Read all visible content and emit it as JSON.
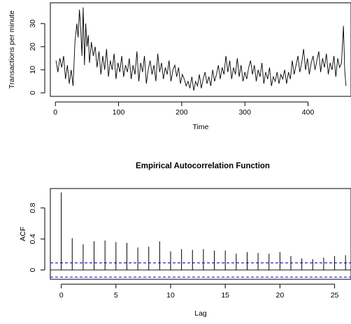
{
  "chart_data": [
    {
      "type": "line",
      "title": "",
      "xlabel": "Time",
      "ylabel": "Transactions per minute",
      "xlim": [
        -8,
        468
      ],
      "ylim": [
        -1.5,
        39
      ],
      "xticks": [
        0,
        100,
        200,
        300,
        400
      ],
      "yticks": [
        0,
        10,
        20,
        30
      ],
      "grid": false,
      "legend": "none",
      "line_color": "#000000",
      "series": [
        {
          "x": [
            1,
            4,
            7,
            10,
            13,
            16,
            19,
            22,
            25,
            28,
            31,
            34,
            36,
            38,
            40,
            42,
            44,
            46,
            48,
            50,
            52,
            54,
            57,
            60,
            63,
            66,
            69,
            72,
            75,
            78,
            81,
            84,
            87,
            90,
            93,
            96,
            99,
            102,
            105,
            108,
            111,
            114,
            117,
            120,
            123,
            126,
            129,
            132,
            135,
            138,
            141,
            144,
            147,
            150,
            153,
            156,
            159,
            162,
            165,
            168,
            171,
            174,
            177,
            180,
            183,
            186,
            189,
            192,
            195,
            198,
            201,
            204,
            207,
            210,
            213,
            216,
            219,
            222,
            225,
            228,
            231,
            234,
            237,
            240,
            243,
            246,
            249,
            252,
            255,
            258,
            261,
            264,
            267,
            270,
            273,
            276,
            279,
            282,
            285,
            288,
            291,
            294,
            297,
            300,
            303,
            306,
            309,
            312,
            315,
            318,
            321,
            324,
            327,
            330,
            333,
            336,
            339,
            342,
            345,
            348,
            351,
            354,
            357,
            360,
            363,
            366,
            369,
            372,
            375,
            378,
            381,
            384,
            387,
            390,
            393,
            396,
            399,
            402,
            405,
            408,
            411,
            414,
            417,
            420,
            423,
            426,
            429,
            432,
            435,
            438,
            441,
            444,
            447,
            450,
            453,
            456,
            458,
            460
          ],
          "values": [
            14,
            9,
            15,
            11,
            16,
            6,
            12,
            4,
            10,
            3,
            22,
            30,
            24,
            36,
            28,
            16,
            37,
            12,
            30,
            20,
            25,
            13,
            22,
            16,
            20,
            11,
            18,
            8,
            16,
            10,
            19,
            7,
            14,
            10,
            17,
            6,
            13,
            9,
            16,
            7,
            12,
            9,
            15,
            6,
            12,
            8,
            18,
            5,
            13,
            9,
            16,
            4,
            10,
            14,
            8,
            12,
            5,
            17,
            9,
            13,
            6,
            11,
            8,
            14,
            5,
            10,
            12,
            7,
            11,
            4,
            8,
            6,
            3,
            5,
            2,
            7,
            1,
            5,
            3,
            8,
            2,
            6,
            9,
            4,
            7,
            3,
            10,
            5,
            8,
            12,
            6,
            11,
            8,
            16,
            9,
            14,
            6,
            11,
            8,
            15,
            7,
            12,
            5,
            9,
            6,
            11,
            14,
            8,
            12,
            5,
            10,
            7,
            13,
            4,
            9,
            6,
            11,
            3,
            7,
            5,
            9,
            4,
            8,
            6,
            10,
            4,
            9,
            6,
            14,
            8,
            12,
            16,
            9,
            13,
            19,
            10,
            15,
            8,
            13,
            16,
            10,
            14,
            18,
            9,
            15,
            11,
            17,
            8,
            13,
            10,
            16,
            7,
            15,
            11,
            13,
            29,
            10,
            3
          ]
        }
      ]
    },
    {
      "type": "bar",
      "title": "Empirical Autocorrelation Function",
      "xlabel": "Lag",
      "ylabel": "ACF",
      "xlim": [
        -1,
        26.5
      ],
      "ylim": [
        -0.12,
        1.05
      ],
      "xticks": [
        0,
        5,
        10,
        15,
        20,
        25
      ],
      "yticks": [
        0.0,
        0.4,
        0.8
      ],
      "grid": false,
      "legend": "none",
      "confidence_band": [
        -0.092,
        0.092
      ],
      "band_color": "#0000cc",
      "categories": [
        0,
        1,
        2,
        3,
        4,
        5,
        6,
        7,
        8,
        9,
        10,
        11,
        12,
        13,
        14,
        15,
        16,
        17,
        18,
        19,
        20,
        21,
        22,
        23,
        24,
        25,
        26
      ],
      "values": [
        1.0,
        0.41,
        0.33,
        0.37,
        0.38,
        0.36,
        0.35,
        0.29,
        0.3,
        0.37,
        0.24,
        0.27,
        0.26,
        0.27,
        0.25,
        0.25,
        0.21,
        0.23,
        0.22,
        0.21,
        0.23,
        0.18,
        0.15,
        0.14,
        0.16,
        0.18,
        0.19
      ]
    }
  ]
}
